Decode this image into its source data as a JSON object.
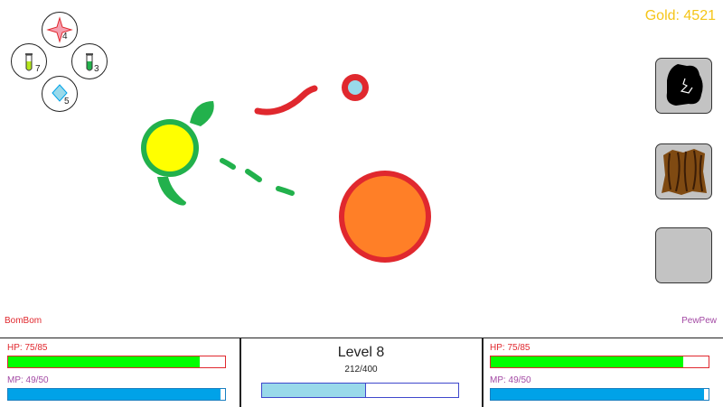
{
  "gold": {
    "text": "Gold: 4521"
  },
  "inventory": {
    "items": [
      {
        "name": "shuriken",
        "count": "4"
      },
      {
        "name": "yellow-green potion",
        "count": "7"
      },
      {
        "name": "green potion",
        "count": "3"
      },
      {
        "name": "blue crystal",
        "count": "5"
      }
    ]
  },
  "skills": [
    {
      "icon": "shadow-blot-icon"
    },
    {
      "icon": "wood-bark-icon"
    },
    {
      "icon": "empty-slot"
    }
  ],
  "players": {
    "left": {
      "name": "BomBom",
      "hp_text": "HP: 75/85",
      "hp": 75,
      "hp_max": 85,
      "mp_text": "MP: 49/50",
      "mp": 49,
      "mp_max": 50
    },
    "right": {
      "name": "PewPew",
      "hp_text": "HP: 75/85",
      "hp": 75,
      "hp_max": 85,
      "mp_text": "MP: 49/50",
      "mp": 49,
      "mp_max": 50
    }
  },
  "level": {
    "title": "Level 8",
    "xp_text": "212/400",
    "xp": 212,
    "xp_max": 400
  },
  "colors": {
    "gold": "#f5c518",
    "hp": "#00ff00",
    "mp": "#00a2e8",
    "xp": "#99d9ea",
    "player1": "#e0282e",
    "player2": "#a349a4"
  }
}
